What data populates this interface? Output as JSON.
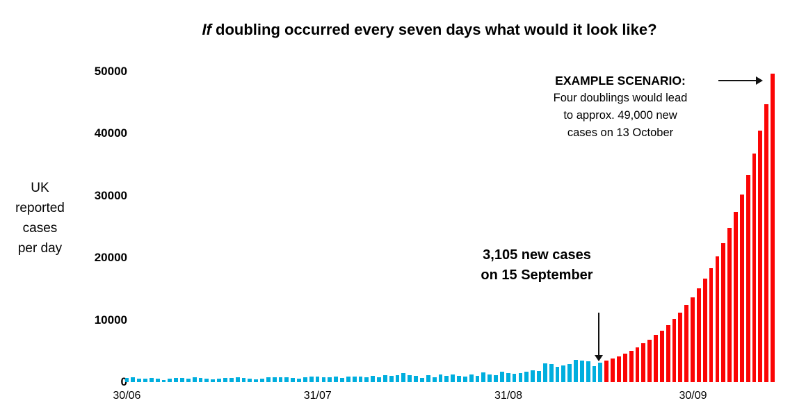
{
  "title": {
    "prefix_italic": "If",
    "rest": " doubling occurred every seven days what would it look like?"
  },
  "y_axis": {
    "label_lines": [
      "UK",
      "reported",
      "cases",
      "per day"
    ],
    "ticks": [
      0,
      10000,
      20000,
      30000,
      40000,
      50000
    ]
  },
  "x_axis": {
    "ticks": [
      {
        "label": "30/06",
        "day": 0
      },
      {
        "label": "31/07",
        "day": 31
      },
      {
        "label": "31/08",
        "day": 62
      },
      {
        "label": "30/09",
        "day": 92
      }
    ]
  },
  "annotations": {
    "mid": {
      "line1": "3,105 new cases",
      "line2": "on 15 September"
    },
    "scenario": {
      "heading": "EXAMPLE SCENARIO:",
      "lines": [
        "Four doublings would lead",
        "to approx. 49,000 new",
        "cases on 13 October"
      ]
    }
  },
  "colors": {
    "actual": "#00AEDE",
    "projection": "#FB0505",
    "text": "#000000",
    "arrow": "#111111"
  },
  "chart_data": {
    "type": "bar",
    "title": "If doubling occurred every seven days what would it look like?",
    "ylabel": "UK reported cases per day",
    "xlabel": "",
    "ylim": [
      0,
      50000
    ],
    "y_ticks": [
      0,
      10000,
      20000,
      30000,
      40000,
      50000
    ],
    "x_tick_labels": [
      "30/06",
      "31/07",
      "31/08",
      "30/09"
    ],
    "grid": false,
    "legend_position": "none",
    "series": [
      {
        "name": "UK reported cases per day (actual)",
        "color_key": "actual",
        "start_date": "30/06",
        "end_date": "15/09",
        "values": [
          689,
          829,
          576,
          544,
          624,
          516,
          352,
          581,
          630,
          642,
          512,
          820,
          650,
          530,
          398,
          538,
          642,
          687,
          827,
          726,
          580,
          445,
          560,
          769,
          768,
          767,
          747,
          685,
          581,
          763,
          846,
          880,
          771,
          743,
          928,
          670,
          892,
          950,
          871,
          758,
          1062,
          816,
          1148,
          1009,
          1129,
          1441,
          1077,
          1040,
          713,
          1089,
          812,
          1182,
          1033,
          1288,
          1041,
          853,
          1184,
          1048,
          1522,
          1276,
          1108,
          1715,
          1406,
          1295,
          1508,
          1735,
          1940,
          1813,
          2988,
          2948,
          2460,
          2659,
          2919,
          3539,
          3497,
          3330,
          2621,
          3105
        ]
      },
      {
        "name": "Example scenario: doubling every seven days",
        "color_key": "projection",
        "start_date": "16/09",
        "end_date": "13/10",
        "values": [
          3424,
          3777,
          4165,
          4594,
          5066,
          5588,
          6210,
          6849,
          7553,
          8331,
          9188,
          10133,
          11175,
          12420,
          13698,
          15107,
          16661,
          18375,
          20266,
          22351,
          24840,
          27396,
          30214,
          33322,
          36750,
          40531,
          44701,
          49680
        ]
      }
    ],
    "annotations": [
      "3,105 new cases on 15 September",
      "EXAMPLE SCENARIO: Four doublings would lead to approx. 49,000 new cases on 13 October"
    ]
  },
  "layout_note_values_visible_only": true
}
